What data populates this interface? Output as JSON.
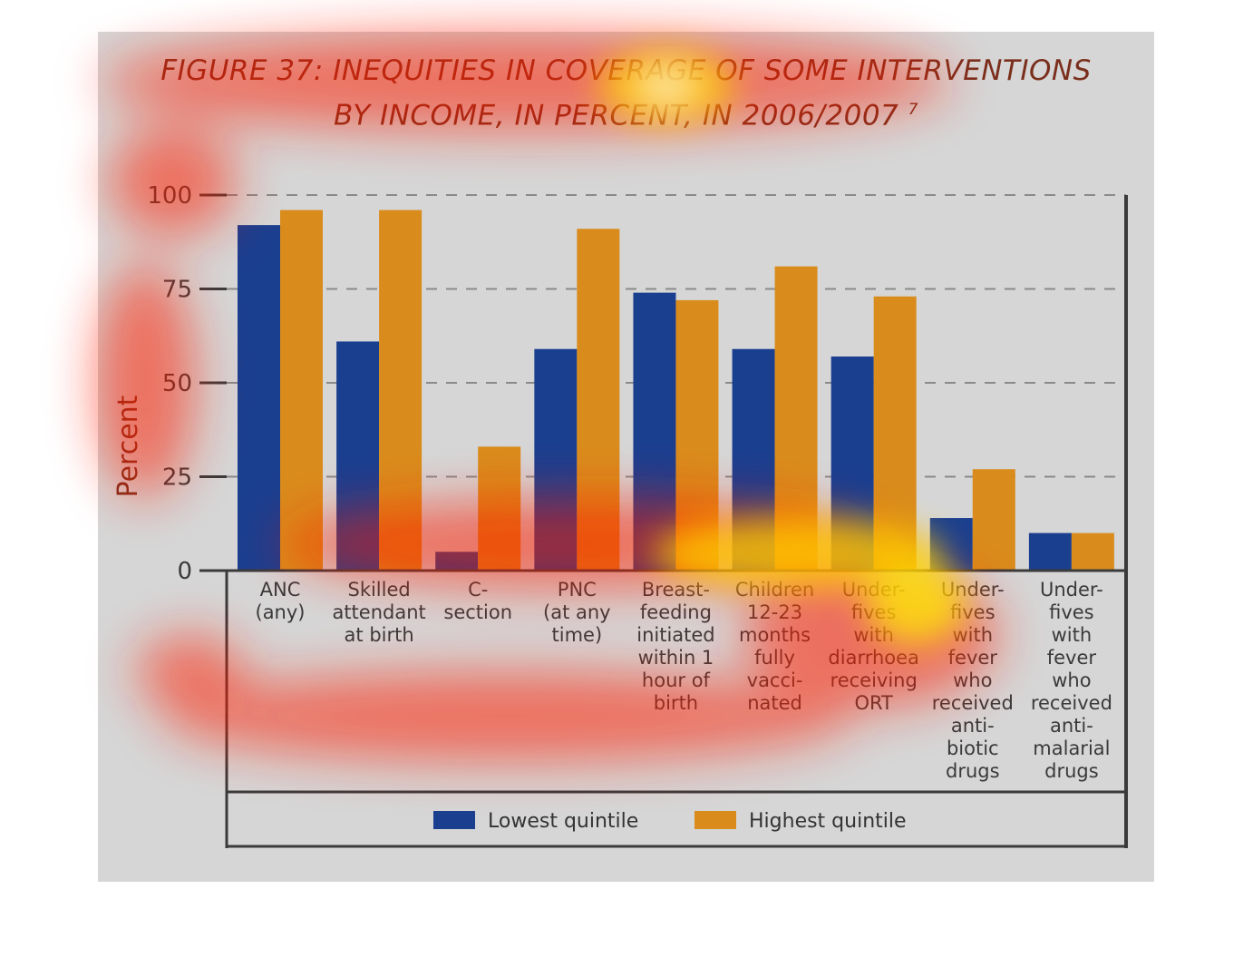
{
  "chart_data": {
    "type": "bar",
    "title_line1": "FIGURE 37: INEQUITIES IN COVERAGE OF SOME INTERVENTIONS",
    "title_line2": "BY INCOME, IN PERCENT, IN 2006/2007",
    "title_superscript": "7",
    "ylabel": "Percent",
    "xlabel": "",
    "ylim": [
      0,
      100
    ],
    "yticks": [
      0,
      25,
      50,
      75,
      100
    ],
    "grid": "dashed horizontal",
    "legend_position": "bottom",
    "categories": [
      [
        "ANC",
        "(any)"
      ],
      [
        "Skilled",
        "attendant",
        "at birth"
      ],
      [
        "C-",
        "section"
      ],
      [
        "PNC",
        "(at any",
        "time)"
      ],
      [
        "Breast-",
        "feeding",
        "initiated",
        "within 1",
        "hour of",
        "birth"
      ],
      [
        "Children",
        "12-23",
        "months",
        "fully",
        "vacci-",
        "nated"
      ],
      [
        "Under-",
        "fives",
        "with",
        "diarrhoea",
        "receiving",
        "ORT"
      ],
      [
        "Under-",
        "fives",
        "with",
        "fever",
        "who",
        "received",
        "anti-",
        "biotic",
        "drugs"
      ],
      [
        "Under-",
        "fives",
        "with",
        "fever",
        "who",
        "received",
        "anti-",
        "malarial",
        "drugs"
      ]
    ],
    "series": [
      {
        "name": "Lowest quintile",
        "color": "#1b3f8f",
        "values": [
          92,
          61,
          5,
          59,
          74,
          59,
          57,
          14,
          10
        ]
      },
      {
        "name": "Highest quintile",
        "color": "#d98c1c",
        "values": [
          96,
          96,
          33,
          91,
          72,
          81,
          73,
          27,
          10
        ]
      }
    ]
  },
  "colors": {
    "background": "#d6d6d6",
    "title": "#7a2f1c",
    "axis": "#3b3b3b",
    "grid": "#8a8a8a"
  }
}
